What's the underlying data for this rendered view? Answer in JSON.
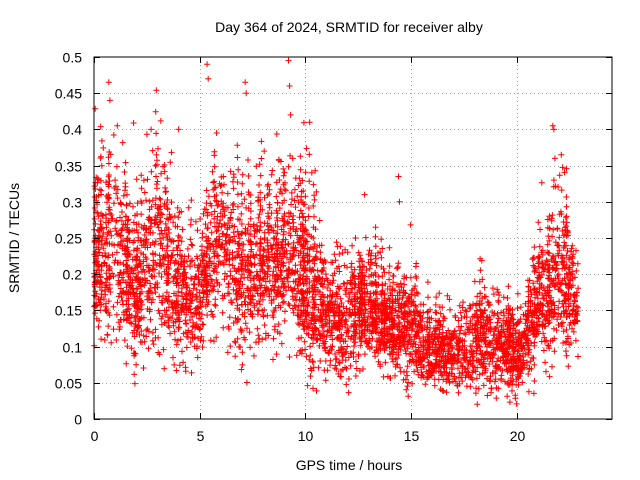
{
  "chart_data": {
    "type": "scatter",
    "title": "Day 364 of 2024, SRMTID for receiver alby",
    "xlabel": "GPS time / hours",
    "ylabel": "SRMTID / TECUs",
    "xlim": [
      0,
      24.5
    ],
    "ylim": [
      0,
      0.5
    ],
    "xticks": [
      0,
      5,
      10,
      15,
      20
    ],
    "xtick_labels": [
      "0",
      "5",
      "10",
      "15",
      "20"
    ],
    "yticks": [
      0,
      0.05,
      0.1,
      0.15,
      0.2,
      0.25,
      0.3,
      0.35,
      0.4,
      0.45,
      0.5
    ],
    "ytick_labels": [
      "0",
      "0.05",
      "0.1",
      "0.15",
      "0.2",
      "0.25",
      "0.3",
      "0.35",
      "0.4",
      "0.45",
      "0.5"
    ],
    "grid": true,
    "marker": "+",
    "marker_color": "#ff0000",
    "points_per_hour": 170,
    "x_start": 0.0,
    "x_end": 22.9,
    "seed": 364,
    "profile": [
      {
        "x": 0.0,
        "y": 0.2,
        "spread": 0.06
      },
      {
        "x": 1.0,
        "y": 0.23,
        "spread": 0.08
      },
      {
        "x": 2.0,
        "y": 0.17,
        "spread": 0.06
      },
      {
        "x": 3.0,
        "y": 0.24,
        "spread": 0.08
      },
      {
        "x": 4.0,
        "y": 0.17,
        "spread": 0.06
      },
      {
        "x": 5.0,
        "y": 0.17,
        "spread": 0.05
      },
      {
        "x": 6.0,
        "y": 0.25,
        "spread": 0.07
      },
      {
        "x": 7.0,
        "y": 0.19,
        "spread": 0.06
      },
      {
        "x": 8.0,
        "y": 0.21,
        "spread": 0.06
      },
      {
        "x": 9.0,
        "y": 0.22,
        "spread": 0.07
      },
      {
        "x": 10.0,
        "y": 0.18,
        "spread": 0.07
      },
      {
        "x": 11.0,
        "y": 0.14,
        "spread": 0.05
      },
      {
        "x": 12.0,
        "y": 0.13,
        "spread": 0.05
      },
      {
        "x": 13.0,
        "y": 0.16,
        "spread": 0.04
      },
      {
        "x": 14.0,
        "y": 0.12,
        "spread": 0.04
      },
      {
        "x": 15.0,
        "y": 0.12,
        "spread": 0.04
      },
      {
        "x": 16.0,
        "y": 0.09,
        "spread": 0.03
      },
      {
        "x": 17.0,
        "y": 0.09,
        "spread": 0.03
      },
      {
        "x": 18.0,
        "y": 0.1,
        "spread": 0.04
      },
      {
        "x": 19.0,
        "y": 0.11,
        "spread": 0.04
      },
      {
        "x": 20.0,
        "y": 0.08,
        "spread": 0.03
      },
      {
        "x": 21.0,
        "y": 0.16,
        "spread": 0.05
      },
      {
        "x": 22.0,
        "y": 0.2,
        "spread": 0.06
      },
      {
        "x": 22.9,
        "y": 0.16,
        "spread": 0.04
      }
    ],
    "peaks": [
      {
        "x": 0.7,
        "y": 0.465
      },
      {
        "x": 0.75,
        "y": 0.44
      },
      {
        "x": 1.1,
        "y": 0.405
      },
      {
        "x": 2.7,
        "y": 0.4
      },
      {
        "x": 4.0,
        "y": 0.4
      },
      {
        "x": 5.35,
        "y": 0.49
      },
      {
        "x": 5.4,
        "y": 0.47
      },
      {
        "x": 5.8,
        "y": 0.395
      },
      {
        "x": 7.15,
        "y": 0.465
      },
      {
        "x": 7.2,
        "y": 0.45
      },
      {
        "x": 9.2,
        "y": 0.495
      },
      {
        "x": 9.25,
        "y": 0.46
      },
      {
        "x": 9.3,
        "y": 0.42
      },
      {
        "x": 9.4,
        "y": 0.36
      },
      {
        "x": 10.2,
        "y": 0.41
      },
      {
        "x": 10.3,
        "y": 0.34
      },
      {
        "x": 12.8,
        "y": 0.31
      },
      {
        "x": 14.4,
        "y": 0.335
      },
      {
        "x": 14.45,
        "y": 0.3
      },
      {
        "x": 21.7,
        "y": 0.405
      },
      {
        "x": 21.75,
        "y": 0.4
      },
      {
        "x": 21.8,
        "y": 0.36
      },
      {
        "x": 21.75,
        "y": 0.33
      }
    ]
  }
}
